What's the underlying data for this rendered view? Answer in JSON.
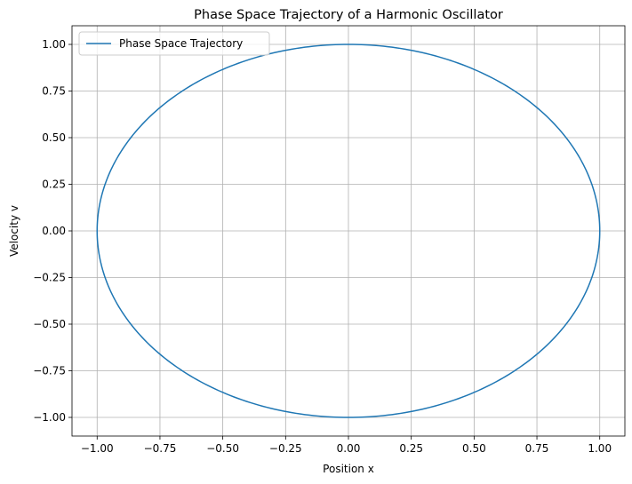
{
  "chart_data": {
    "type": "line",
    "title": "Phase Space Trajectory of a Harmonic Oscillator",
    "xlabel": "Position x",
    "ylabel": "Velocity v",
    "xlim": [
      -1.1,
      1.1
    ],
    "ylim": [
      -1.1,
      1.1
    ],
    "xticks": [
      -1.0,
      -0.75,
      -0.5,
      -0.25,
      0.0,
      0.25,
      0.5,
      0.75,
      1.0
    ],
    "yticks": [
      -1.0,
      -0.75,
      -0.5,
      -0.25,
      0.0,
      0.25,
      0.5,
      0.75,
      1.0
    ],
    "xtick_labels": [
      "−1.00",
      "−0.75",
      "−0.50",
      "−0.25",
      "0.00",
      "0.25",
      "0.50",
      "0.75",
      "1.00"
    ],
    "ytick_labels": [
      "−1.00",
      "−0.75",
      "−0.50",
      "−0.25",
      "0.00",
      "0.25",
      "0.50",
      "0.75",
      "1.00"
    ],
    "grid": true,
    "legend": "top-left",
    "series": [
      {
        "name": "Phase Space Trajectory",
        "color": "#1f77b4",
        "x": [
          1.0,
          0.966,
          0.866,
          0.707,
          0.5,
          0.259,
          0.0,
          -0.259,
          -0.5,
          -0.707,
          -0.866,
          -0.966,
          -1.0,
          -0.966,
          -0.866,
          -0.707,
          -0.5,
          -0.259,
          0.0,
          0.259,
          0.5,
          0.707,
          0.866,
          0.966,
          1.0
        ],
        "y": [
          0.0,
          -0.259,
          -0.5,
          -0.707,
          -0.866,
          -0.966,
          -1.0,
          -0.966,
          -0.866,
          -0.707,
          -0.5,
          -0.259,
          0.0,
          0.259,
          0.5,
          0.707,
          0.866,
          0.966,
          1.0,
          0.966,
          0.866,
          0.707,
          0.5,
          0.259,
          0.0
        ]
      }
    ]
  }
}
